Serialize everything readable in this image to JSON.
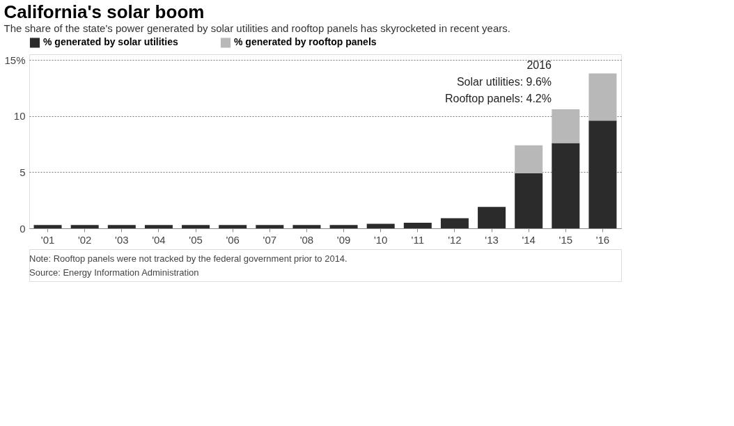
{
  "chart_data": {
    "type": "bar",
    "title": "California's solar boom",
    "subtitle": "The share of the state's power generated by solar utilities and rooftop panels has skyrocketed in recent years.",
    "categories": [
      "'01",
      "'02",
      "'03",
      "'04",
      "'05",
      "'06",
      "'07",
      "'08",
      "'09",
      "'10",
      "'11",
      "'12",
      "'13",
      "'14",
      "'15",
      "'16"
    ],
    "series": [
      {
        "name": "% generated by solar utilities",
        "color": "#2b2b2b",
        "values": [
          0.3,
          0.3,
          0.3,
          0.3,
          0.3,
          0.3,
          0.3,
          0.3,
          0.3,
          0.4,
          0.5,
          0.9,
          1.9,
          4.9,
          7.6,
          9.6
        ]
      },
      {
        "name": "% generated by rooftop panels",
        "color": "#b8b8b8",
        "values": [
          null,
          null,
          null,
          null,
          null,
          null,
          null,
          null,
          null,
          null,
          null,
          null,
          null,
          2.5,
          3.0,
          4.2
        ]
      }
    ],
    "stacked": true,
    "ylim": [
      0,
      15.5
    ],
    "yticks": [
      0,
      5,
      10,
      {
        "value": 15,
        "label": "15%"
      }
    ],
    "grid": "y",
    "legend": "top left",
    "annotations": [
      "2016",
      "Solar utilities: 9.6%",
      "Rooftop panels: 4.2%",
      "Note: Rooftop panels were not tracked by the federal government prior to 2014.",
      "Source: Energy Information Administration"
    ]
  }
}
